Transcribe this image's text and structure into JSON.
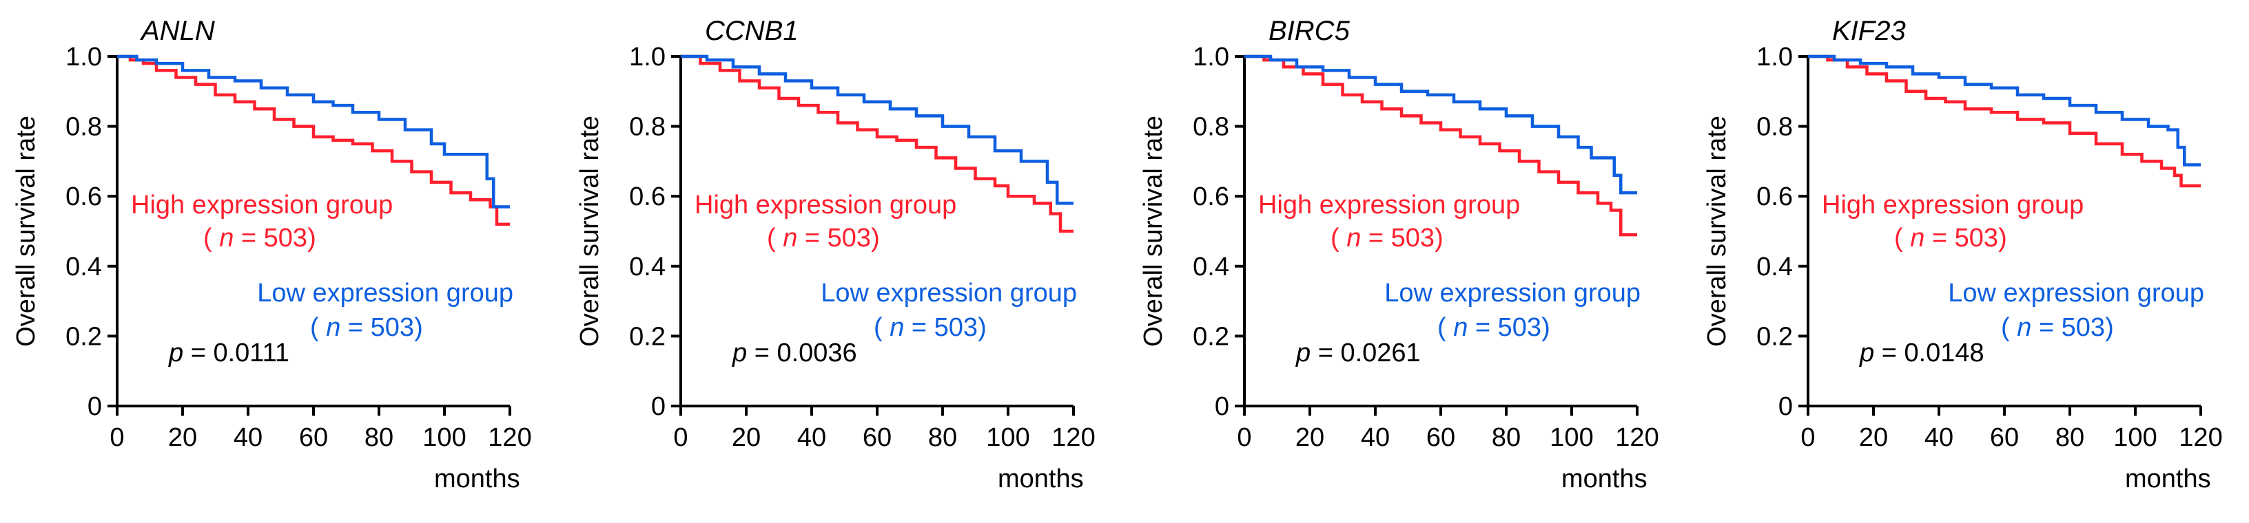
{
  "colors": {
    "high": "#ff1f2d",
    "low": "#0d5fe0",
    "axis": "#000000"
  },
  "chart_data": [
    {
      "type": "line",
      "title": "ANLN",
      "ylabel": "Overall survival rate",
      "xlabel": "months",
      "xlim": [
        0,
        120
      ],
      "ylim": [
        0,
        1.0
      ],
      "x_ticks": [
        "0",
        "20",
        "40",
        "60",
        "80",
        "100",
        "120"
      ],
      "y_ticks": [
        "0",
        "0.2",
        "0.4",
        "0.6",
        "0.8",
        "1.0"
      ],
      "high_label": "High expression group",
      "low_label": "Low expression group",
      "n_prefix": "( ",
      "n_letter": "n",
      "n_suffix": " = 503)",
      "p_letter": "p",
      "p_text": " = 0.0111",
      "series": [
        {
          "name": "High expression group",
          "color": "#ff1f2d",
          "points": [
            [
              0,
              1.0
            ],
            [
              4,
              0.99
            ],
            [
              8,
              0.98
            ],
            [
              12,
              0.96
            ],
            [
              18,
              0.94
            ],
            [
              24,
              0.92
            ],
            [
              30,
              0.89
            ],
            [
              36,
              0.87
            ],
            [
              42,
              0.85
            ],
            [
              48,
              0.82
            ],
            [
              54,
              0.8
            ],
            [
              60,
              0.77
            ],
            [
              66,
              0.76
            ],
            [
              72,
              0.75
            ],
            [
              78,
              0.73
            ],
            [
              84,
              0.7
            ],
            [
              90,
              0.67
            ],
            [
              96,
              0.64
            ],
            [
              102,
              0.61
            ],
            [
              108,
              0.59
            ],
            [
              114,
              0.57
            ],
            [
              116,
              0.52
            ],
            [
              120,
              0.52
            ]
          ]
        },
        {
          "name": "Low expression group",
          "color": "#0d5fe0",
          "points": [
            [
              0,
              1.0
            ],
            [
              6,
              0.99
            ],
            [
              12,
              0.98
            ],
            [
              20,
              0.96
            ],
            [
              28,
              0.94
            ],
            [
              36,
              0.93
            ],
            [
              44,
              0.91
            ],
            [
              52,
              0.89
            ],
            [
              60,
              0.87
            ],
            [
              66,
              0.86
            ],
            [
              72,
              0.84
            ],
            [
              80,
              0.82
            ],
            [
              88,
              0.79
            ],
            [
              96,
              0.75
            ],
            [
              100,
              0.72
            ],
            [
              112,
              0.72
            ],
            [
              113,
              0.65
            ],
            [
              115,
              0.57
            ],
            [
              120,
              0.57
            ]
          ]
        }
      ]
    },
    {
      "type": "line",
      "title": "CCNB1",
      "ylabel": "Overall survival rate",
      "xlabel": "months",
      "xlim": [
        0,
        120
      ],
      "ylim": [
        0,
        1.0
      ],
      "x_ticks": [
        "0",
        "20",
        "40",
        "60",
        "80",
        "100",
        "120"
      ],
      "y_ticks": [
        "0",
        "0.2",
        "0.4",
        "0.6",
        "0.8",
        "1.0"
      ],
      "high_label": "High expression group",
      "low_label": "Low expression group",
      "n_prefix": "( ",
      "n_letter": "n",
      "n_suffix": " = 503)",
      "p_letter": "p",
      "p_text": " = 0.0036",
      "series": [
        {
          "name": "High expression group",
          "color": "#ff1f2d",
          "points": [
            [
              0,
              1.0
            ],
            [
              6,
              0.98
            ],
            [
              12,
              0.96
            ],
            [
              18,
              0.93
            ],
            [
              24,
              0.91
            ],
            [
              30,
              0.88
            ],
            [
              36,
              0.86
            ],
            [
              42,
              0.84
            ],
            [
              48,
              0.81
            ],
            [
              54,
              0.79
            ],
            [
              60,
              0.77
            ],
            [
              66,
              0.76
            ],
            [
              72,
              0.74
            ],
            [
              78,
              0.71
            ],
            [
              84,
              0.68
            ],
            [
              90,
              0.65
            ],
            [
              96,
              0.63
            ],
            [
              100,
              0.6
            ],
            [
              108,
              0.58
            ],
            [
              113,
              0.55
            ],
            [
              116,
              0.5
            ],
            [
              120,
              0.5
            ]
          ]
        },
        {
          "name": "Low expression group",
          "color": "#0d5fe0",
          "points": [
            [
              0,
              1.0
            ],
            [
              8,
              0.99
            ],
            [
              16,
              0.97
            ],
            [
              24,
              0.95
            ],
            [
              32,
              0.93
            ],
            [
              40,
              0.91
            ],
            [
              48,
              0.89
            ],
            [
              56,
              0.87
            ],
            [
              64,
              0.85
            ],
            [
              72,
              0.83
            ],
            [
              80,
              0.8
            ],
            [
              88,
              0.77
            ],
            [
              96,
              0.73
            ],
            [
              104,
              0.7
            ],
            [
              110,
              0.7
            ],
            [
              112,
              0.64
            ],
            [
              115,
              0.58
            ],
            [
              120,
              0.58
            ]
          ]
        }
      ]
    },
    {
      "type": "line",
      "title": "BIRC5",
      "ylabel": "Overall survival rate",
      "xlabel": "months",
      "xlim": [
        0,
        120
      ],
      "ylim": [
        0,
        1.0
      ],
      "x_ticks": [
        "0",
        "20",
        "40",
        "60",
        "80",
        "100",
        "120"
      ],
      "y_ticks": [
        "0",
        "0.2",
        "0.4",
        "0.6",
        "0.8",
        "1.0"
      ],
      "high_label": "High expression group",
      "low_label": "Low expression group",
      "n_prefix": "( ",
      "n_letter": "n",
      "n_suffix": " = 503)",
      "p_letter": "p",
      "p_text": " = 0.0261",
      "series": [
        {
          "name": "High expression group",
          "color": "#ff1f2d",
          "points": [
            [
              0,
              1.0
            ],
            [
              6,
              0.99
            ],
            [
              12,
              0.97
            ],
            [
              18,
              0.95
            ],
            [
              24,
              0.92
            ],
            [
              30,
              0.89
            ],
            [
              36,
              0.87
            ],
            [
              42,
              0.85
            ],
            [
              48,
              0.83
            ],
            [
              54,
              0.81
            ],
            [
              60,
              0.79
            ],
            [
              66,
              0.77
            ],
            [
              72,
              0.75
            ],
            [
              78,
              0.73
            ],
            [
              84,
              0.7
            ],
            [
              90,
              0.67
            ],
            [
              96,
              0.64
            ],
            [
              102,
              0.61
            ],
            [
              108,
              0.58
            ],
            [
              112,
              0.56
            ],
            [
              115,
              0.49
            ],
            [
              120,
              0.49
            ]
          ]
        },
        {
          "name": "Low expression group",
          "color": "#0d5fe0",
          "points": [
            [
              0,
              1.0
            ],
            [
              8,
              0.99
            ],
            [
              16,
              0.97
            ],
            [
              24,
              0.96
            ],
            [
              32,
              0.94
            ],
            [
              40,
              0.92
            ],
            [
              48,
              0.9
            ],
            [
              56,
              0.89
            ],
            [
              64,
              0.87
            ],
            [
              72,
              0.85
            ],
            [
              80,
              0.83
            ],
            [
              88,
              0.8
            ],
            [
              96,
              0.77
            ],
            [
              102,
              0.74
            ],
            [
              106,
              0.71
            ],
            [
              112,
              0.71
            ],
            [
              113,
              0.66
            ],
            [
              115,
              0.61
            ],
            [
              120,
              0.61
            ]
          ]
        }
      ]
    },
    {
      "type": "line",
      "title": "KIF23",
      "ylabel": "Overall survival rate",
      "xlabel": "months",
      "xlim": [
        0,
        120
      ],
      "ylim": [
        0,
        1.0
      ],
      "x_ticks": [
        "0",
        "20",
        "40",
        "60",
        "80",
        "100",
        "120"
      ],
      "y_ticks": [
        "0",
        "0.2",
        "0.4",
        "0.6",
        "0.8",
        "1.0"
      ],
      "high_label": "High expression group",
      "low_label": "Low expression group",
      "n_prefix": "( ",
      "n_letter": "n",
      "n_suffix": " = 503)",
      "p_letter": "p",
      "p_text": " = 0.0148",
      "series": [
        {
          "name": "High expression group",
          "color": "#ff1f2d",
          "points": [
            [
              0,
              1.0
            ],
            [
              6,
              0.99
            ],
            [
              12,
              0.97
            ],
            [
              18,
              0.95
            ],
            [
              24,
              0.93
            ],
            [
              30,
              0.9
            ],
            [
              36,
              0.88
            ],
            [
              42,
              0.87
            ],
            [
              48,
              0.85
            ],
            [
              56,
              0.84
            ],
            [
              64,
              0.82
            ],
            [
              72,
              0.81
            ],
            [
              80,
              0.78
            ],
            [
              88,
              0.75
            ],
            [
              96,
              0.72
            ],
            [
              102,
              0.7
            ],
            [
              108,
              0.68
            ],
            [
              112,
              0.66
            ],
            [
              114,
              0.63
            ],
            [
              120,
              0.63
            ]
          ]
        },
        {
          "name": "Low expression group",
          "color": "#0d5fe0",
          "points": [
            [
              0,
              1.0
            ],
            [
              8,
              0.99
            ],
            [
              16,
              0.98
            ],
            [
              24,
              0.97
            ],
            [
              32,
              0.95
            ],
            [
              40,
              0.94
            ],
            [
              48,
              0.92
            ],
            [
              56,
              0.91
            ],
            [
              64,
              0.89
            ],
            [
              72,
              0.88
            ],
            [
              80,
              0.86
            ],
            [
              88,
              0.84
            ],
            [
              96,
              0.82
            ],
            [
              104,
              0.8
            ],
            [
              110,
              0.79
            ],
            [
              113,
              0.74
            ],
            [
              115,
              0.69
            ],
            [
              120,
              0.69
            ]
          ]
        }
      ]
    }
  ]
}
